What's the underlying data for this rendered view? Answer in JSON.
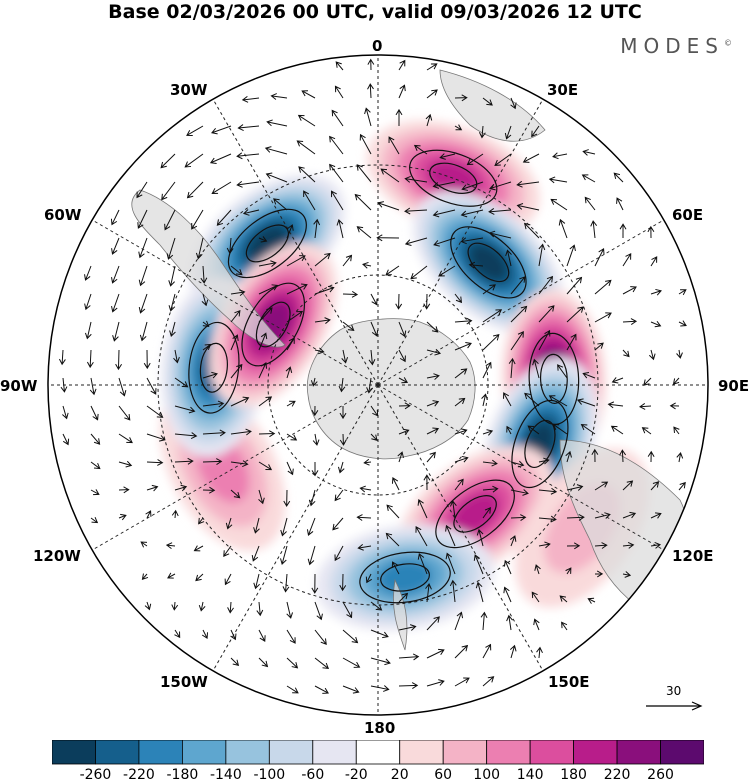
{
  "title": "Base 02/03/2026 00 UTC, valid 09/03/2026 12 UTC",
  "logo": {
    "text": "MODES",
    "mark": "©"
  },
  "lon_labels": {
    "l0": "0",
    "l30e": "30E",
    "l60e": "60E",
    "l90e": "90E",
    "l120e": "120E",
    "l150e": "150E",
    "l180": "180",
    "l150w": "150W",
    "l120w": "120W",
    "l90w": "90W",
    "l60w": "60W",
    "l30w": "30W"
  },
  "wind_reference": {
    "value": "30",
    "icon": "arrow-right-icon"
  },
  "colorbar": {
    "colors": [
      "#0b3d5c",
      "#155f8c",
      "#2c83b8",
      "#5ea6cf",
      "#97c3de",
      "#c8d8ea",
      "#e6e6f2",
      "#ffffff",
      "#f9dadb",
      "#f4b3c6",
      "#ec7fb1",
      "#dc4e9e",
      "#b81d8a",
      "#8a0f7c",
      "#5c0a6e"
    ],
    "ticks": [
      "-260",
      "-220",
      "-180",
      "-140",
      "-100",
      "-60",
      "-20",
      "20",
      "60",
      "100",
      "140",
      "180",
      "220",
      "260"
    ]
  },
  "anomalies": [
    {
      "name": "low-south-atlantic",
      "value": -260,
      "lon_deg": -38,
      "colat_deg": 49
    },
    {
      "name": "high-atlantic",
      "value": 200,
      "lon_deg": 20,
      "colat_deg": 60
    },
    {
      "name": "low-indian-west",
      "value": -260,
      "lon_deg": 42,
      "colat_deg": 45
    },
    {
      "name": "high-indian",
      "value": 260,
      "lon_deg": 88,
      "colat_deg": 48
    },
    {
      "name": "low-indian-east",
      "value": -260,
      "lon_deg": 110,
      "colat_deg": 47
    },
    {
      "name": "high-southern-ocean",
      "value": 190,
      "lon_deg": 143,
      "colat_deg": 44
    },
    {
      "name": "low-pacific",
      "value": -180,
      "lon_deg": 172,
      "colat_deg": 53
    },
    {
      "name": "high-pacific",
      "value": 120,
      "lon_deg": -118,
      "colat_deg": 48
    },
    {
      "name": "low-amundsen",
      "value": -220,
      "lon_deg": -84,
      "colat_deg": 45
    },
    {
      "name": "high-south-america",
      "value": 220,
      "lon_deg": -60,
      "colat_deg": 33
    },
    {
      "name": "high-east",
      "value": 70,
      "lon_deg": 125,
      "colat_deg": 68
    }
  ]
}
